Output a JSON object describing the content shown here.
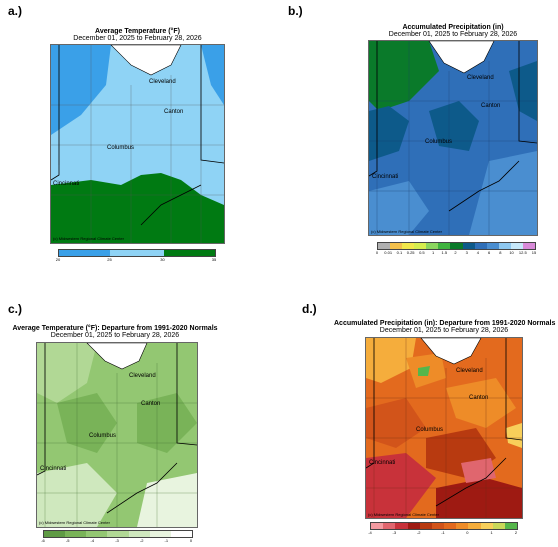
{
  "panels": [
    {
      "label": "a.)",
      "title": "Average Temperature (°F)",
      "subtitle": "December 01, 2025 to February 28, 2026",
      "cities": [
        "Cleveland",
        "Canton",
        "Columbus",
        "Cincinnati"
      ],
      "credit": "(c) Midwestern Regional Climate Center",
      "legend": {
        "colors": [
          "#3aa0e8",
          "#8fd3f5",
          "#007a12"
        ],
        "ticks": [
          "20",
          "25",
          "30",
          "35"
        ]
      }
    },
    {
      "label": "b.)",
      "title": "Accumulated Precipitation (in)",
      "subtitle": "December 01, 2025 to February 28, 2026",
      "cities": [
        "Cleveland",
        "Canton",
        "Columbus",
        "Cincinnati"
      ],
      "credit": "(c) Midwestern Regional Climate Center",
      "legend": {
        "colors": [
          "#b0b0b0",
          "#f3c04b",
          "#f2e84a",
          "#d6ee4e",
          "#8bd65e",
          "#3fb33f",
          "#0a7a2a",
          "#0d5a8a",
          "#2f6fb8",
          "#4a8ed0",
          "#8ec8f0",
          "#c6e8fa",
          "#d88ad8"
        ],
        "ticks": [
          "0",
          "0.01",
          "0.1",
          "0.25",
          "0.5",
          "1",
          "1.5",
          "2",
          "3",
          "4",
          "6",
          "8",
          "10",
          "12.5",
          "15"
        ]
      }
    },
    {
      "label": "c.)",
      "title": "Average Temperature (°F): Departure from 1991-2020 Normals",
      "subtitle": "December 01, 2025 to February 28, 2026",
      "cities": [
        "Cleveland",
        "Canton",
        "Columbus",
        "Cincinnati"
      ],
      "credit": "(c) Midwestern Regional Climate Center",
      "legend": {
        "colors": [
          "#5f9b45",
          "#79b358",
          "#93c772",
          "#b1d895",
          "#cfe8be",
          "#e8f4df",
          "#ffffff"
        ],
        "ticks": [
          "-6",
          "-5",
          "-4",
          "-3",
          "-2",
          "-1",
          "0"
        ]
      }
    },
    {
      "label": "d.)",
      "title": "Accumulated Precipitation (in): Departure from 1991-2020 Normals",
      "subtitle": "December 01, 2025 to February 28, 2026",
      "cities": [
        "Cleveland",
        "Canton",
        "Columbus",
        "Cincinnati"
      ],
      "credit": "(c) Midwestern Regional Climate Center",
      "legend": {
        "colors": [
          "#f29aa0",
          "#e0666e",
          "#c8323a",
          "#9e1a12",
          "#b83a10",
          "#d2541a",
          "#e36a1e",
          "#ee8c28",
          "#f5ad3c",
          "#f8cf5a",
          "#c9d85a",
          "#55b64b"
        ],
        "ticks": [
          "-4",
          "-3",
          "-2",
          "-1",
          "0",
          "1",
          "2"
        ]
      }
    }
  ]
}
